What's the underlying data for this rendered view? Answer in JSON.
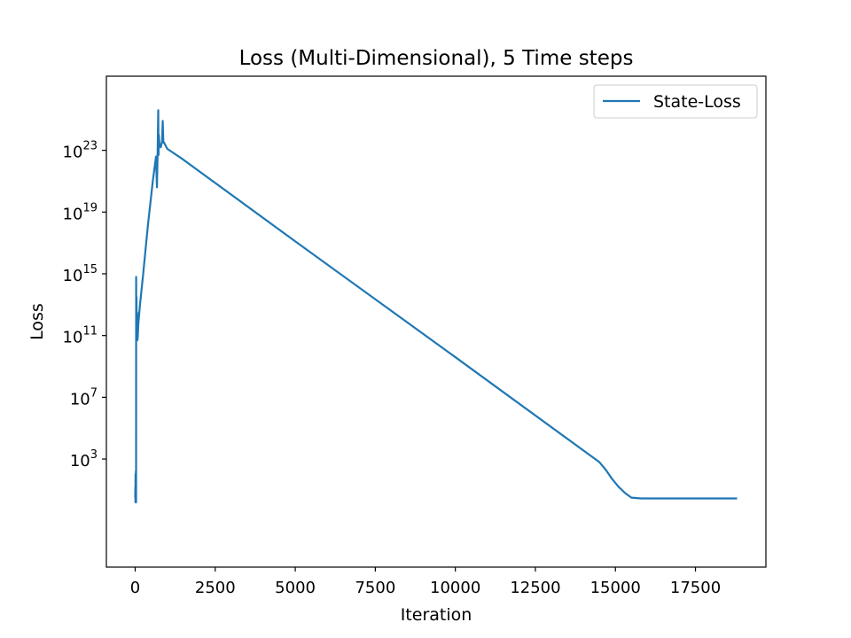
{
  "chart_data": {
    "type": "line",
    "title": "Loss (Multi-Dimensional), 5 Time steps",
    "xlabel": "Iteration",
    "ylabel": "Loss",
    "yscale": "log",
    "xlim": [
      -900,
      19700
    ],
    "ylim_log10": [
      -4,
      27.8
    ],
    "x_ticks": [
      {
        "value": 0,
        "label": "0"
      },
      {
        "value": 2500,
        "label": "2500"
      },
      {
        "value": 5000,
        "label": "5000"
      },
      {
        "value": 7500,
        "label": "7500"
      },
      {
        "value": 10000,
        "label": "10000"
      },
      {
        "value": 12500,
        "label": "12500"
      },
      {
        "value": 15000,
        "label": "15000"
      },
      {
        "value": 17500,
        "label": "17500"
      }
    ],
    "y_ticks": [
      {
        "log10": 3,
        "base": "10",
        "exp": "3"
      },
      {
        "log10": 7,
        "base": "10",
        "exp": "7"
      },
      {
        "log10": 11,
        "base": "10",
        "exp": "11"
      },
      {
        "log10": 15,
        "base": "10",
        "exp": "15"
      },
      {
        "log10": 19,
        "base": "10",
        "exp": "19"
      },
      {
        "log10": 23,
        "base": "10",
        "exp": "23"
      }
    ],
    "legend": {
      "position": "upper right"
    },
    "grid": false,
    "series": [
      {
        "name": "State-Loss",
        "color": "#1f77b4",
        "points_log10": [
          [
            0,
            0.5
          ],
          [
            5,
            1.2
          ],
          [
            8,
            0.2
          ],
          [
            10,
            2.0
          ],
          [
            12,
            0.4
          ],
          [
            15,
            0.8
          ],
          [
            18,
            0.3
          ],
          [
            20,
            2.2
          ],
          [
            22,
            0.3
          ],
          [
            25,
            0.5
          ],
          [
            28,
            0.2
          ],
          [
            30,
            14.8
          ],
          [
            35,
            11.5
          ],
          [
            40,
            13.5
          ],
          [
            50,
            10.8
          ],
          [
            60,
            12.5
          ],
          [
            70,
            10.7
          ],
          [
            80,
            10.9
          ],
          [
            100,
            11.8
          ],
          [
            150,
            13.0
          ],
          [
            250,
            15.0
          ],
          [
            400,
            18.2
          ],
          [
            550,
            21.0
          ],
          [
            650,
            22.6
          ],
          [
            680,
            20.6
          ],
          [
            700,
            22.8
          ],
          [
            720,
            25.6
          ],
          [
            730,
            22.7
          ],
          [
            740,
            24.0
          ],
          [
            760,
            23.3
          ],
          [
            800,
            23.2
          ],
          [
            840,
            23.6
          ],
          [
            860,
            24.9
          ],
          [
            880,
            23.5
          ],
          [
            900,
            23.5
          ],
          [
            1000,
            23.1
          ],
          [
            1500,
            22.4
          ],
          [
            5000,
            17.1
          ],
          [
            10000,
            9.6
          ],
          [
            14500,
            2.8
          ],
          [
            14700,
            2.3
          ],
          [
            14900,
            1.7
          ],
          [
            15100,
            1.2
          ],
          [
            15300,
            0.8
          ],
          [
            15500,
            0.5
          ],
          [
            15800,
            0.45
          ],
          [
            16500,
            0.45
          ],
          [
            18800,
            0.45
          ]
        ]
      }
    ]
  }
}
